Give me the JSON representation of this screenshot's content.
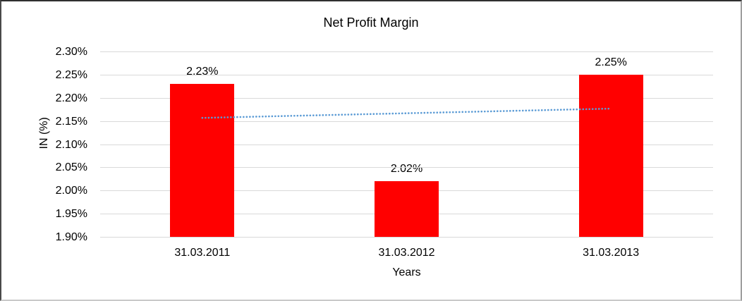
{
  "chart_data": {
    "type": "bar",
    "title": "Net Profit Margin",
    "xlabel": "Years",
    "ylabel": "IN (%)",
    "categories": [
      "31.03.2011",
      "31.03.2012",
      "31.03.2013"
    ],
    "values": [
      2.23,
      2.02,
      2.25
    ],
    "data_labels": [
      "2.23%",
      "2.02%",
      "2.25%"
    ],
    "y_ticks": [
      "2.30%",
      "2.25%",
      "2.20%",
      "2.15%",
      "2.10%",
      "2.05%",
      "2.00%",
      "1.95%",
      "1.90%"
    ],
    "ylim": [
      1.9,
      2.3
    ],
    "y_tick_step": 0.05,
    "grid": true,
    "legend": "none",
    "bar_color": "#FF0000",
    "gridline_color": "#D9D9D9",
    "text_color": "#000000",
    "trendline": {
      "type": "linear",
      "style": "dotted",
      "color": "#5B9BD5",
      "start_value": 2.1567,
      "end_value": 2.1767
    }
  }
}
